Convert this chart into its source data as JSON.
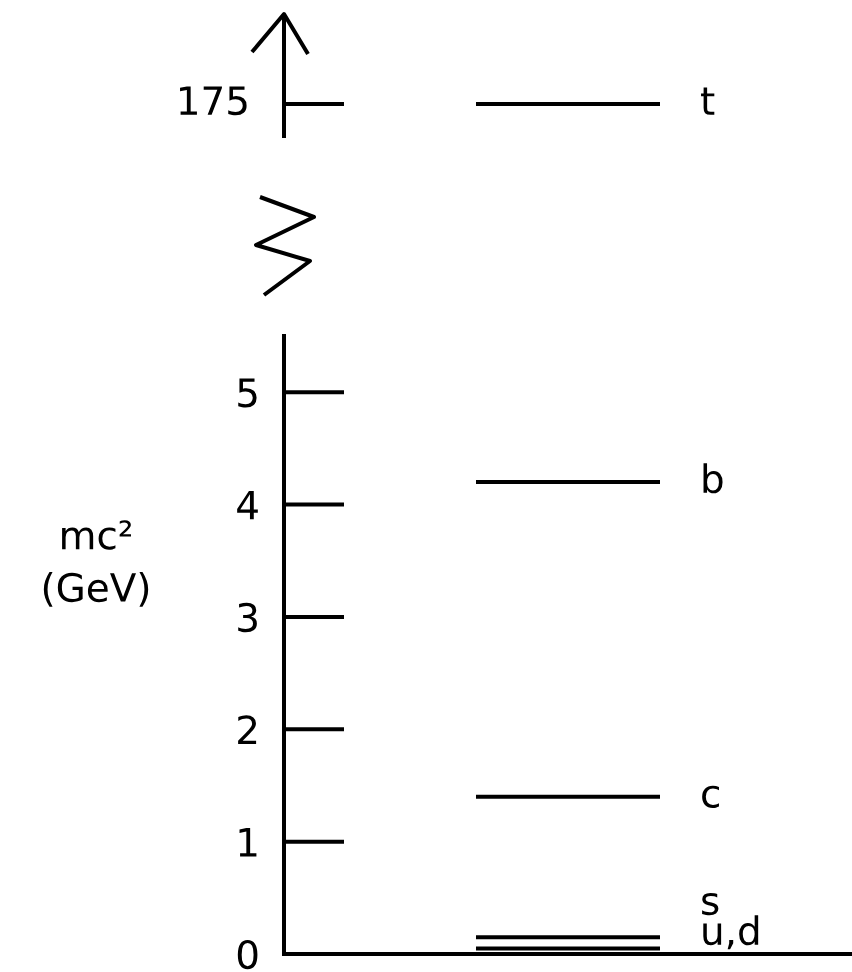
{
  "chart_data": [
    {
      "type": "other",
      "annotations": [
        "175",
        "t"
      ]
    },
    {
      "type": "line",
      "ylabel": "mc²\n(GeV)",
      "categories": [
        null,
        null
      ],
      "ylim": [
        0,
        5.5
      ],
      "yticks": [
        0,
        1,
        2,
        3,
        4,
        5
      ],
      "tick_labels": "y",
      "ref_lines": [
        {
          "axis": "y",
          "value": 4.2,
          "label": "b",
          "color": "#000000"
        },
        {
          "axis": "y",
          "value": 1.4,
          "label": "c",
          "color": "#000000"
        },
        {
          "axis": "y",
          "value": 0.15,
          "label": "s",
          "color": "#000000"
        },
        {
          "axis": "y",
          "value": 0.05,
          "label": "u,d",
          "color": "#000000"
        }
      ]
    }
  ]
}
